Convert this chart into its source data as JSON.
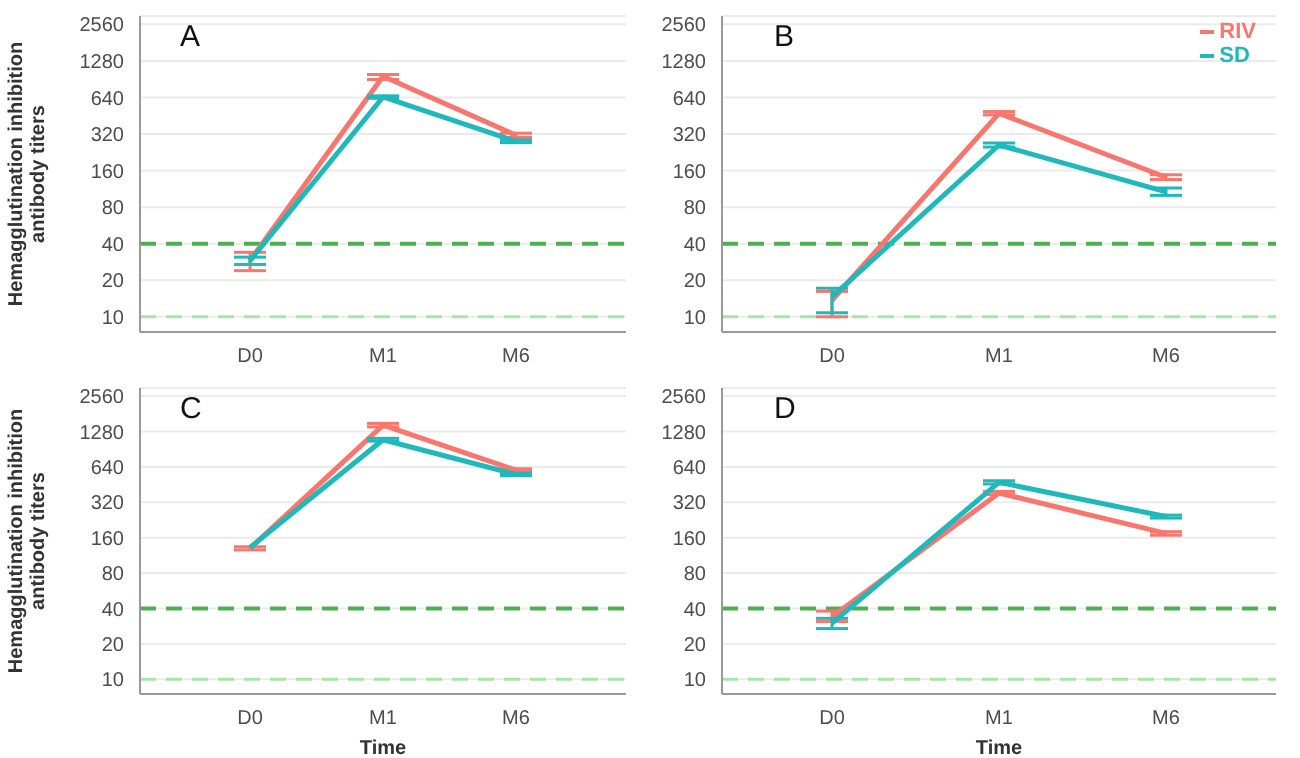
{
  "chart_data": [
    {
      "type": "line",
      "title": "A",
      "ylabel": "Hemagglutination inhibition antibody titers",
      "categories": [
        "D0",
        "M1",
        "M6"
      ],
      "log": "y",
      "ylim": [
        7.5,
        3000
      ],
      "yticks": [
        10,
        20,
        40,
        80,
        160,
        320,
        640,
        1280,
        2560
      ],
      "grid": "y",
      "marker": "none",
      "line_style": "solid",
      "series": [
        {
          "color": "#f8766d",
          "values": [
            29,
            958,
            313
          ],
          "errors": [
            [
              24,
              34
            ],
            [
              900,
              990
            ],
            [
              300,
              325
            ]
          ]
        },
        {
          "color": "#1fb8bb",
          "values": [
            29,
            646,
            279
          ],
          "errors": [
            [
              27,
              31
            ],
            [
              630,
              660
            ],
            [
              272,
              286
            ]
          ]
        }
      ],
      "ref_lines": [
        {
          "axis": "y",
          "value": 40,
          "color": "#4caf50",
          "line_style": "dashed"
        },
        {
          "axis": "y",
          "value": 10,
          "color": "#a8e6a8",
          "line_style": "dashed"
        }
      ]
    },
    {
      "type": "line",
      "title": "B",
      "categories": [
        "D0",
        "M1",
        "M6"
      ],
      "log": "y",
      "ylim": [
        7.5,
        3000
      ],
      "yticks": [
        10,
        20,
        40,
        80,
        160,
        320,
        640,
        1280,
        2560
      ],
      "grid": "y",
      "marker": "none",
      "line_style": "solid",
      "legend": "top right",
      "series": [
        {
          "name": "RIV",
          "color": "#f8766d",
          "values": [
            13.7,
            474,
            141
          ],
          "errors": [
            [
              10,
              16.2
            ],
            [
              460,
              490
            ],
            [
              135,
              148
            ]
          ]
        },
        {
          "name": "SD",
          "color": "#1fb8bb",
          "values": [
            14.6,
            260,
            107
          ],
          "errors": [
            [
              10.8,
              17.2
            ],
            [
              250,
              270
            ],
            [
              100,
              115
            ]
          ]
        }
      ],
      "ref_lines": [
        {
          "axis": "y",
          "value": 40,
          "color": "#4caf50",
          "line_style": "dashed"
        },
        {
          "axis": "y",
          "value": 10,
          "color": "#a8e6a8",
          "line_style": "dashed"
        }
      ]
    },
    {
      "type": "line",
      "title": "C",
      "ylabel": "Hemagglutination inhibition antibody titers",
      "xlabel": "Time",
      "categories": [
        "D0",
        "M1",
        "M6"
      ],
      "log": "y",
      "ylim": [
        7.5,
        3000
      ],
      "yticks": [
        10,
        20,
        40,
        80,
        160,
        320,
        640,
        1280,
        2560
      ],
      "grid": "y",
      "marker": "none",
      "line_style": "solid",
      "series": [
        {
          "color": "#f8766d",
          "values": [
            130,
            1450,
            601
          ],
          "errors": [
            [
              126,
              134
            ],
            [
              1400,
              1500
            ],
            [
              585,
              617
            ]
          ]
        },
        {
          "color": "#1fb8bb",
          "values": [
            132,
            1090,
            553
          ],
          "errors": [
            null,
            [
              1060,
              1120
            ],
            [
              540,
              566
            ]
          ]
        }
      ],
      "ref_lines": [
        {
          "axis": "y",
          "value": 40,
          "color": "#4caf50",
          "line_style": "dashed"
        },
        {
          "axis": "y",
          "value": 10,
          "color": "#a8e6a8",
          "line_style": "dashed"
        }
      ]
    },
    {
      "type": "line",
      "title": "D",
      "xlabel": "Time",
      "categories": [
        "D0",
        "M1",
        "M6"
      ],
      "log": "y",
      "ylim": [
        7.5,
        3000
      ],
      "yticks": [
        10,
        20,
        40,
        80,
        160,
        320,
        640,
        1280,
        2560
      ],
      "grid": "y",
      "marker": "none",
      "line_style": "solid",
      "series": [
        {
          "color": "#f8766d",
          "values": [
            34,
            384,
            174
          ],
          "errors": [
            [
              31,
              38
            ],
            [
              372,
              396
            ],
            [
              168,
              180
            ]
          ]
        },
        {
          "color": "#1fb8bb",
          "values": [
            30,
            473,
            242
          ],
          "errors": [
            [
              27,
              33
            ],
            [
              458,
              488
            ],
            [
              235,
              249
            ]
          ]
        }
      ],
      "ref_lines": [
        {
          "axis": "y",
          "value": 40,
          "color": "#4caf50",
          "line_style": "dashed"
        },
        {
          "axis": "y",
          "value": 10,
          "color": "#a8e6a8",
          "line_style": "dashed"
        }
      ]
    }
  ]
}
